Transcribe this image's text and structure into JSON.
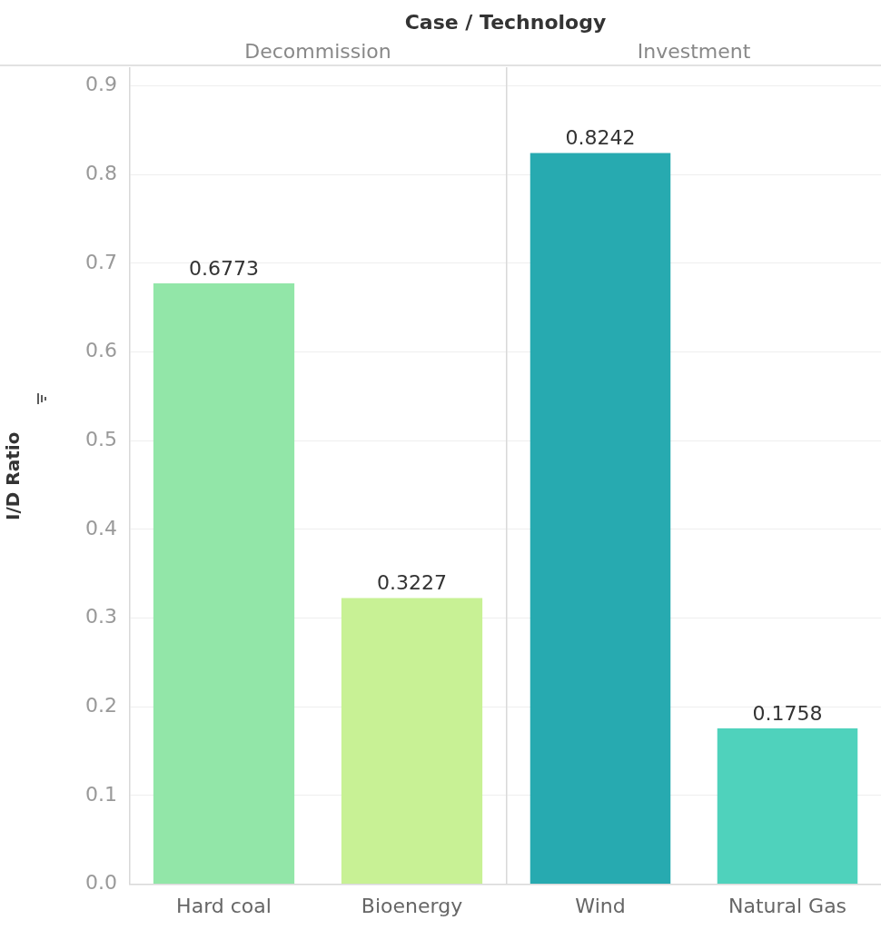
{
  "chart_data": [
    {
      "type": "bar",
      "title": "Case / Technology",
      "subtitle": "Decommission",
      "ylabel": "I/D Ratio",
      "categories": [
        "Hard coal",
        "Bioenergy"
      ],
      "values": [
        0.6773,
        0.3227
      ],
      "colors": [
        "#92e6a8",
        "#c8f195"
      ],
      "ylim": [
        0,
        0.92
      ],
      "yticks": [
        {
          "value": 0,
          "label": "0.0"
        },
        0.1,
        0.2,
        0.3,
        0.4,
        0.5,
        0.6,
        0.7,
        0.8,
        0.9
      ],
      "grid": "y",
      "data_labels": true
    },
    {
      "type": "bar",
      "subtitle": "Investment",
      "categories": [
        "Wind",
        "Natural Gas"
      ],
      "values": [
        0.8242,
        0.1758
      ],
      "colors": [
        "#27aab0",
        "#4fd2bc"
      ],
      "ylim": [
        0,
        0.92
      ],
      "yticks": [
        0,
        0.1,
        0.2,
        0.3,
        0.4,
        0.5,
        0.6,
        0.7,
        0.8,
        0.9
      ],
      "grid": "y",
      "data_labels": true,
      "tick_labels": "x"
    }
  ]
}
